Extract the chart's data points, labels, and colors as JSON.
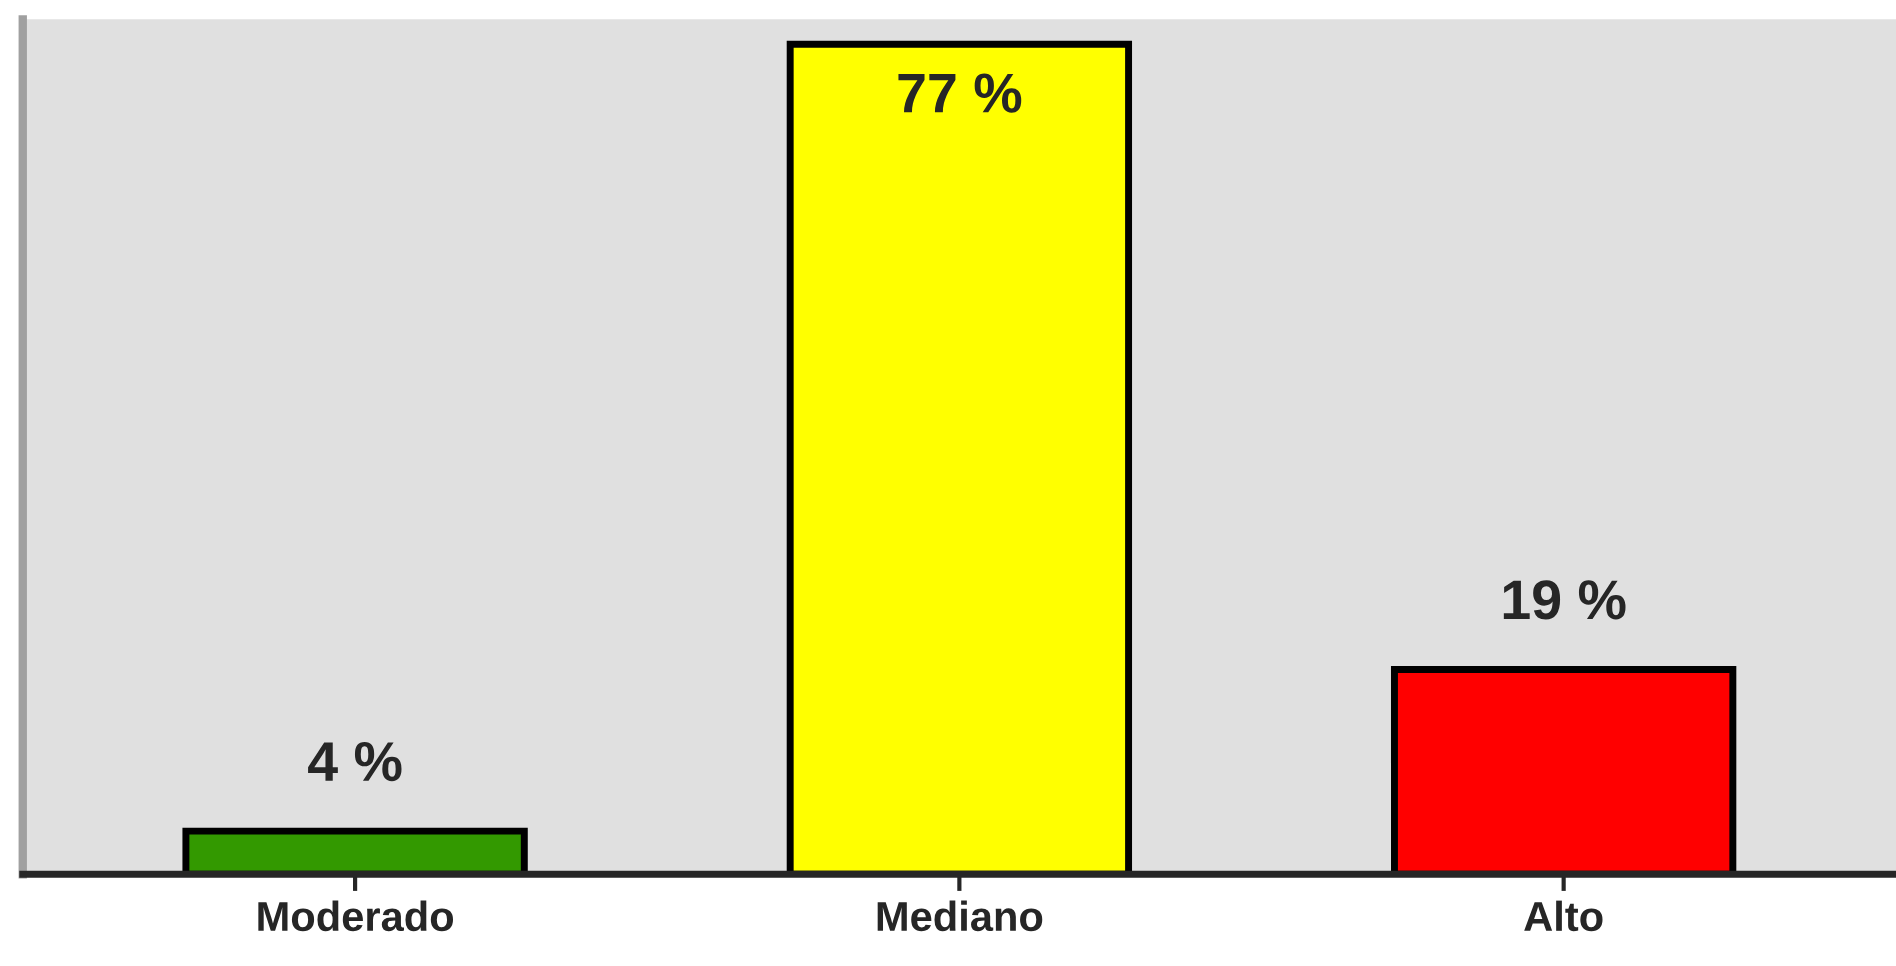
{
  "chart_data": {
    "type": "bar",
    "categories": [
      "Moderado",
      "Mediano",
      "Alto"
    ],
    "values": [
      4,
      77,
      19
    ],
    "colors": [
      "#339900",
      "#ffff00",
      "#ff0000"
    ],
    "value_labels": [
      "4 %",
      "77 %",
      "19 %"
    ]
  }
}
